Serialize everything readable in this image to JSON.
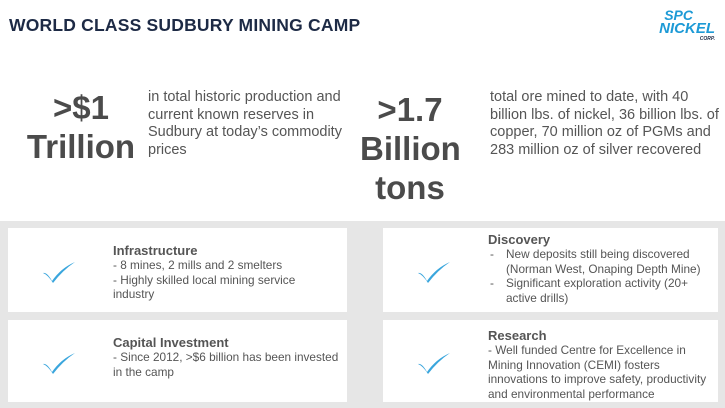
{
  "header": {
    "title": "WORLD CLASS SUDBURY MINING CAMP",
    "logo": {
      "top": "SPC",
      "bottom": "NICKEL",
      "sub": "CORP."
    }
  },
  "stats": [
    {
      "lines": [
        ">$1",
        "Trillion"
      ],
      "description": "in total historic production and current known reserves in Sudbury at today’s commodity prices"
    },
    {
      "lines": [
        ">1.7",
        "Billion",
        "tons"
      ],
      "description": "total ore mined to date, with 40 billion lbs. of nickel, 36 billion lbs. of copper, 70 million oz of PGMs and 283 million oz of silver recovered"
    }
  ],
  "cards": [
    {
      "heading": "Infrastructure",
      "items": [
        {
          "text": "- 8 mines, 2 mills and 2 smelters"
        },
        {
          "text": "- Highly skilled local mining service industry"
        }
      ]
    },
    {
      "heading": "Discovery",
      "items": [
        {
          "marker": "-",
          "text": "New deposits still being discovered (Norman West, Onaping Depth Mine)"
        },
        {
          "marker": "-",
          "text": "Significant exploration activity (20+ active drills)"
        }
      ]
    },
    {
      "heading": "Capital Investment",
      "items": [
        {
          "text": "- Since 2012, >$6 billion has been invested in the camp"
        }
      ]
    },
    {
      "heading": "Research",
      "items": [
        {
          "text": "- Well funded Centre for Excellence in Mining Innovation (CEMI) fosters innovations to improve safety, productivity and environmental performance"
        }
      ]
    }
  ]
}
